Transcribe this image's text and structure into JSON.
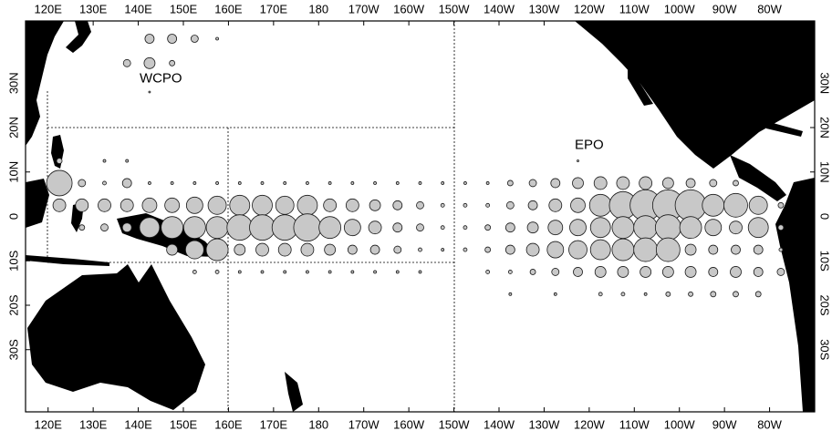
{
  "map": {
    "xlim": [
      115,
      290
    ],
    "ylim": [
      -44,
      44
    ],
    "xticks": [
      {
        "value": 120,
        "label": "120E"
      },
      {
        "value": 130,
        "label": "130E"
      },
      {
        "value": 140,
        "label": "140E"
      },
      {
        "value": 150,
        "label": "150E"
      },
      {
        "value": 160,
        "label": "160E"
      },
      {
        "value": 170,
        "label": "170E"
      },
      {
        "value": 180,
        "label": "180"
      },
      {
        "value": 190,
        "label": "170W"
      },
      {
        "value": 200,
        "label": "160W"
      },
      {
        "value": 210,
        "label": "150W"
      },
      {
        "value": 220,
        "label": "140W"
      },
      {
        "value": 230,
        "label": "130W"
      },
      {
        "value": 240,
        "label": "120W"
      },
      {
        "value": 250,
        "label": "110W"
      },
      {
        "value": 260,
        "label": "100W"
      },
      {
        "value": 270,
        "label": "90W"
      },
      {
        "value": 280,
        "label": "80W"
      }
    ],
    "yticks": [
      {
        "value": 30,
        "label": "30N"
      },
      {
        "value": 20,
        "label": "20N"
      },
      {
        "value": 10,
        "label": "10N"
      },
      0,
      {
        "value": -10,
        "label": "10S"
      },
      {
        "value": -20,
        "label": "20S"
      },
      {
        "value": -30,
        "label": "30S"
      }
    ],
    "regions": [
      {
        "label": "WCPO",
        "lon": 145,
        "lat": 31
      },
      {
        "label": "EPO",
        "lon": 240,
        "lat": 16
      }
    ],
    "bubbles": {
      "lons": [
        122.5,
        127.5,
        132.5,
        137.5,
        142.5,
        147.5,
        152.5,
        157.5,
        162.5,
        167.5,
        172.5,
        177.5,
        182.5,
        187.5,
        192.5,
        197.5,
        202.5,
        207.5,
        212.5,
        217.5,
        222.5,
        227.5,
        232.5,
        237.5,
        242.5,
        247.5,
        252.5,
        257.5,
        262.5,
        267.5,
        272.5,
        277.5,
        282.5
      ],
      "rows": [
        {
          "lat": 40,
          "radius": [
            null,
            null,
            null,
            null,
            5,
            5,
            4,
            1.5,
            null,
            null,
            null,
            null,
            null,
            null,
            null,
            null,
            null,
            null,
            null,
            null,
            null,
            null,
            null,
            null,
            null,
            null,
            null,
            null,
            null,
            null,
            null,
            null,
            null
          ]
        },
        {
          "lat": 34.5,
          "radius": [
            null,
            null,
            null,
            4,
            6,
            3,
            null,
            null,
            null,
            null,
            null,
            null,
            null,
            null,
            null,
            null,
            null,
            null,
            null,
            null,
            null,
            null,
            null,
            null,
            null,
            null,
            null,
            null,
            null,
            null,
            null,
            null,
            null
          ]
        },
        {
          "lat": 28,
          "radius": [
            null,
            null,
            null,
            null,
            1,
            null,
            null,
            null,
            null,
            null,
            null,
            null,
            null,
            null,
            null,
            null,
            null,
            null,
            null,
            null,
            null,
            null,
            null,
            null,
            null,
            null,
            null,
            null,
            null,
            null,
            null,
            null,
            null
          ]
        },
        {
          "lat": 12.5,
          "radius": [
            3,
            null,
            1.5,
            1.5,
            null,
            null,
            null,
            null,
            null,
            null,
            null,
            null,
            null,
            null,
            null,
            null,
            null,
            null,
            null,
            null,
            null,
            null,
            null,
            1,
            null,
            null,
            null,
            null,
            null,
            null,
            null,
            null,
            null
          ]
        },
        {
          "lat": 7.5,
          "radius": [
            14,
            4,
            2,
            5,
            1.5,
            1.5,
            1.5,
            1.5,
            1.5,
            1.5,
            1.5,
            1.5,
            1.5,
            1.5,
            1.5,
            1.5,
            1.5,
            1.5,
            1.5,
            1.5,
            3,
            4,
            5,
            6,
            7,
            7,
            7,
            6,
            5,
            4,
            3,
            null,
            null
          ]
        },
        {
          "lat": 2.5,
          "radius": [
            7,
            7,
            7,
            7,
            8,
            8,
            9,
            10,
            11,
            11,
            10,
            11,
            7,
            7,
            6,
            5,
            4,
            2,
            2,
            2,
            4,
            5,
            7,
            8,
            12,
            15,
            17,
            17,
            17,
            12,
            13,
            10,
            3
          ]
        },
        {
          "lat": -2.5,
          "radius": [
            null,
            3,
            4,
            5,
            11,
            12,
            12,
            12,
            14,
            14,
            14,
            15,
            12,
            9,
            7,
            5,
            4,
            2,
            2,
            3,
            5,
            6,
            8,
            9,
            11,
            12,
            13,
            14,
            12,
            9,
            7,
            11,
            3
          ]
        },
        {
          "lat": -7.5,
          "radius": [
            null,
            null,
            null,
            null,
            null,
            6,
            10,
            12,
            6,
            7,
            7,
            7,
            6,
            5,
            5,
            4,
            2,
            1.5,
            2,
            3,
            5,
            7,
            9,
            10,
            11,
            12,
            13,
            13,
            6,
            5,
            5,
            5,
            2
          ]
        },
        {
          "lat": -12.5,
          "radius": [
            null,
            null,
            null,
            null,
            null,
            null,
            2,
            2,
            1.5,
            1.5,
            1.5,
            1.5,
            1.5,
            1.5,
            1.5,
            1.5,
            1.5,
            null,
            null,
            2,
            2,
            3,
            4,
            5,
            6,
            6,
            6,
            6,
            6,
            5,
            6,
            5,
            4
          ]
        },
        {
          "lat": -17.5,
          "radius": [
            null,
            null,
            null,
            null,
            null,
            null,
            null,
            null,
            null,
            null,
            null,
            null,
            null,
            null,
            null,
            null,
            null,
            null,
            null,
            null,
            1.5,
            null,
            1.5,
            null,
            2,
            2,
            1.5,
            2.5,
            2.5,
            3,
            3,
            3,
            null
          ]
        }
      ]
    }
  }
}
